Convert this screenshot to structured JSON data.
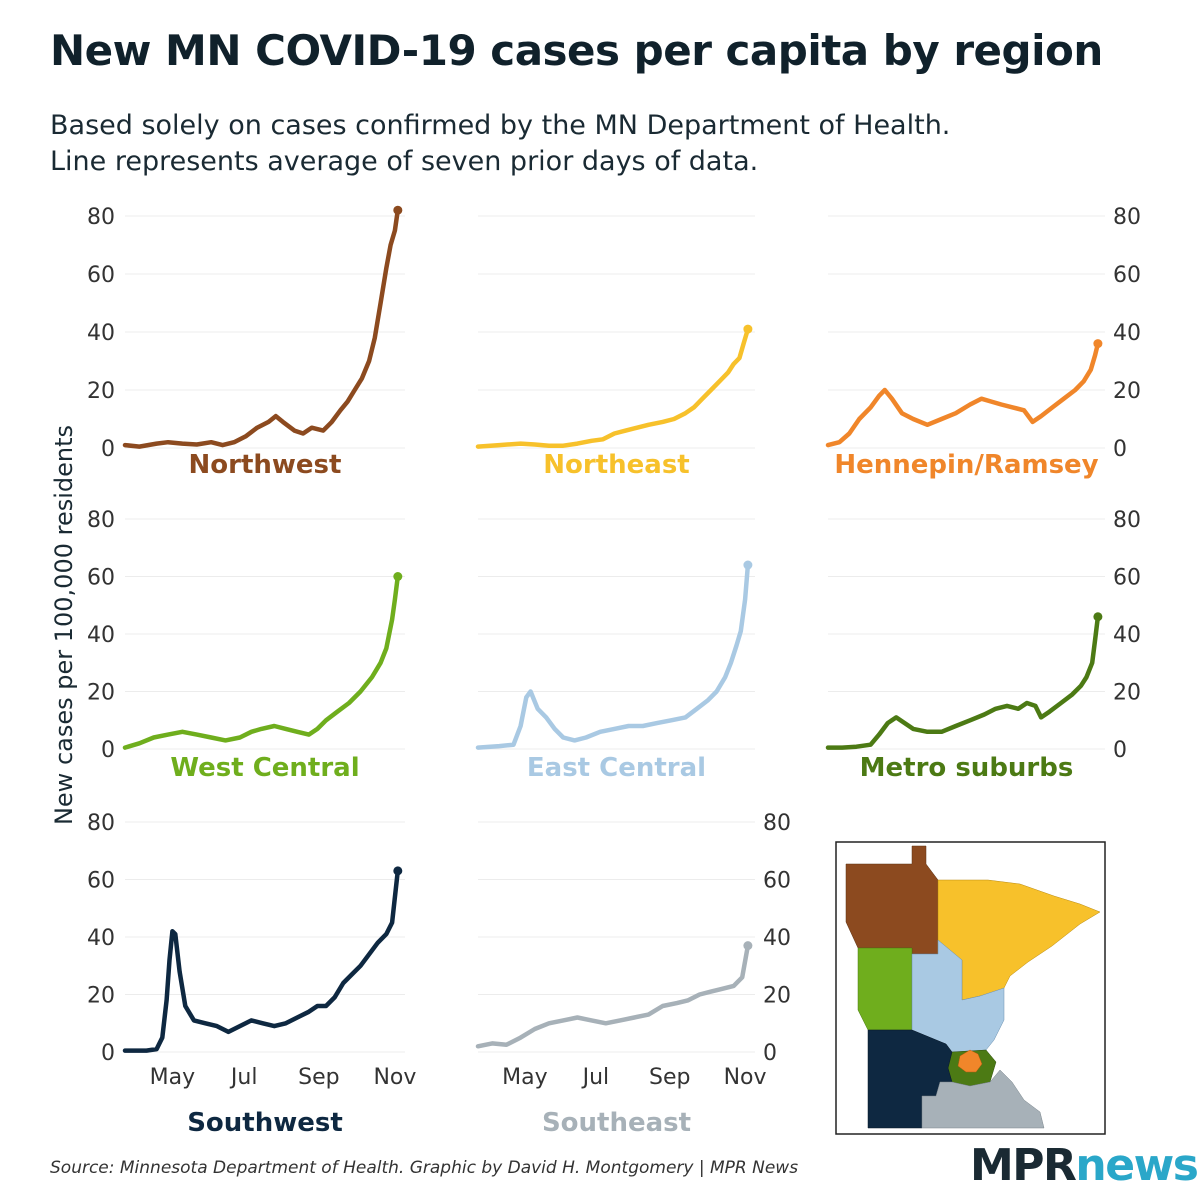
{
  "title": "New MN COVID-19 cases per capita by region",
  "subtitle_lines": [
    "Based solely on cases confirmed by the MN Department of Health.",
    "Line represents average of seven prior days of data."
  ],
  "source": "Source: Minnesota Department of Health. Graphic by David H. Montgomery | MPR News",
  "logo": {
    "part1": "MPR",
    "part2": "news"
  },
  "chart_data": {
    "type": "line",
    "title": "New MN COVID-19 cases per capita by region",
    "ylabel": "New cases per 100,000 residents",
    "xlabel": "",
    "ylim": [
      0,
      80
    ],
    "yticks": [
      0,
      20,
      40,
      60,
      80
    ],
    "xlim": [
      0,
      195
    ],
    "xticks": [
      {
        "label": "May",
        "day": 33
      },
      {
        "label": "Jul",
        "day": 83
      },
      {
        "label": "Sep",
        "day": 135
      },
      {
        "label": "Nov",
        "day": 188
      }
    ],
    "x_note": "x values are days since approx. March 28, 2020",
    "grid": true,
    "series": [
      {
        "name": "Northwest",
        "color": "#8c4a1f",
        "points": [
          [
            0,
            1
          ],
          [
            10,
            0.5
          ],
          [
            22,
            1.5
          ],
          [
            30,
            2
          ],
          [
            40,
            1.5
          ],
          [
            50,
            1.2
          ],
          [
            60,
            2
          ],
          [
            68,
            1
          ],
          [
            76,
            2
          ],
          [
            84,
            4
          ],
          [
            92,
            7
          ],
          [
            100,
            9
          ],
          [
            105,
            11
          ],
          [
            110,
            9
          ],
          [
            118,
            6
          ],
          [
            124,
            5
          ],
          [
            130,
            7
          ],
          [
            138,
            6
          ],
          [
            144,
            9
          ],
          [
            150,
            13
          ],
          [
            155,
            16
          ],
          [
            160,
            20
          ],
          [
            165,
            24
          ],
          [
            170,
            30
          ],
          [
            174,
            38
          ],
          [
            178,
            50
          ],
          [
            182,
            62
          ],
          [
            185,
            70
          ],
          [
            188,
            75
          ],
          [
            190,
            82
          ]
        ]
      },
      {
        "name": "Northeast",
        "color": "#f7c12b",
        "points": [
          [
            0,
            0.5
          ],
          [
            15,
            1
          ],
          [
            30,
            1.5
          ],
          [
            40,
            1.2
          ],
          [
            50,
            0.8
          ],
          [
            60,
            0.8
          ],
          [
            70,
            1.5
          ],
          [
            80,
            2.5
          ],
          [
            88,
            3
          ],
          [
            96,
            5
          ],
          [
            104,
            6
          ],
          [
            112,
            7
          ],
          [
            120,
            8
          ],
          [
            130,
            9
          ],
          [
            138,
            10
          ],
          [
            146,
            12
          ],
          [
            152,
            14
          ],
          [
            158,
            17
          ],
          [
            164,
            20
          ],
          [
            170,
            23
          ],
          [
            176,
            26
          ],
          [
            180,
            29
          ],
          [
            184,
            31
          ],
          [
            187,
            36
          ],
          [
            190,
            41
          ]
        ]
      },
      {
        "name": "Hennepin/Ramsey",
        "color": "#f0862a",
        "points": [
          [
            0,
            1
          ],
          [
            8,
            2
          ],
          [
            15,
            5
          ],
          [
            22,
            10
          ],
          [
            30,
            14
          ],
          [
            36,
            18
          ],
          [
            40,
            20
          ],
          [
            45,
            17
          ],
          [
            52,
            12
          ],
          [
            60,
            10
          ],
          [
            70,
            8
          ],
          [
            80,
            10
          ],
          [
            90,
            12
          ],
          [
            100,
            15
          ],
          [
            108,
            17
          ],
          [
            115,
            16
          ],
          [
            122,
            15
          ],
          [
            130,
            14
          ],
          [
            138,
            13
          ],
          [
            144,
            9
          ],
          [
            150,
            11
          ],
          [
            158,
            14
          ],
          [
            166,
            17
          ],
          [
            174,
            20
          ],
          [
            180,
            23
          ],
          [
            185,
            27
          ],
          [
            188,
            32
          ],
          [
            190,
            36
          ]
        ]
      },
      {
        "name": "West Central",
        "color": "#6fae1d",
        "points": [
          [
            0,
            0.5
          ],
          [
            10,
            2
          ],
          [
            20,
            4
          ],
          [
            30,
            5
          ],
          [
            40,
            6
          ],
          [
            50,
            5
          ],
          [
            60,
            4
          ],
          [
            70,
            3
          ],
          [
            80,
            4
          ],
          [
            88,
            6
          ],
          [
            95,
            7
          ],
          [
            104,
            8
          ],
          [
            112,
            7
          ],
          [
            120,
            6
          ],
          [
            128,
            5
          ],
          [
            134,
            7
          ],
          [
            140,
            10
          ],
          [
            148,
            13
          ],
          [
            156,
            16
          ],
          [
            164,
            20
          ],
          [
            172,
            25
          ],
          [
            178,
            30
          ],
          [
            182,
            35
          ],
          [
            186,
            45
          ],
          [
            188,
            52
          ],
          [
            190,
            60
          ]
        ]
      },
      {
        "name": "East Central",
        "color": "#a9c9e3",
        "points": [
          [
            0,
            0.5
          ],
          [
            15,
            1
          ],
          [
            25,
            1.5
          ],
          [
            30,
            8
          ],
          [
            34,
            18
          ],
          [
            37,
            20
          ],
          [
            42,
            14
          ],
          [
            48,
            11
          ],
          [
            54,
            7
          ],
          [
            60,
            4
          ],
          [
            68,
            3
          ],
          [
            76,
            4
          ],
          [
            86,
            6
          ],
          [
            96,
            7
          ],
          [
            106,
            8
          ],
          [
            116,
            8
          ],
          [
            126,
            9
          ],
          [
            136,
            10
          ],
          [
            146,
            11
          ],
          [
            154,
            14
          ],
          [
            162,
            17
          ],
          [
            168,
            20
          ],
          [
            174,
            25
          ],
          [
            178,
            30
          ],
          [
            182,
            36
          ],
          [
            185,
            41
          ],
          [
            188,
            52
          ],
          [
            190,
            64
          ]
        ]
      },
      {
        "name": "Metro suburbs",
        "color": "#4c7a14",
        "points": [
          [
            0,
            0.5
          ],
          [
            10,
            0.5
          ],
          [
            20,
            0.8
          ],
          [
            30,
            1.5
          ],
          [
            36,
            5
          ],
          [
            42,
            9
          ],
          [
            48,
            11
          ],
          [
            54,
            9
          ],
          [
            60,
            7
          ],
          [
            70,
            6
          ],
          [
            80,
            6
          ],
          [
            90,
            8
          ],
          [
            100,
            10
          ],
          [
            110,
            12
          ],
          [
            118,
            14
          ],
          [
            126,
            15
          ],
          [
            134,
            14
          ],
          [
            140,
            16
          ],
          [
            146,
            15
          ],
          [
            150,
            11
          ],
          [
            156,
            13
          ],
          [
            164,
            16
          ],
          [
            172,
            19
          ],
          [
            178,
            22
          ],
          [
            182,
            25
          ],
          [
            186,
            30
          ],
          [
            188,
            38
          ],
          [
            190,
            46
          ]
        ]
      },
      {
        "name": "Southwest",
        "color": "#0e2841",
        "points": [
          [
            0,
            0.5
          ],
          [
            15,
            0.5
          ],
          [
            22,
            1
          ],
          [
            26,
            5
          ],
          [
            29,
            18
          ],
          [
            31,
            32
          ],
          [
            33,
            42
          ],
          [
            35,
            41
          ],
          [
            38,
            28
          ],
          [
            42,
            16
          ],
          [
            48,
            11
          ],
          [
            56,
            10
          ],
          [
            64,
            9
          ],
          [
            72,
            7
          ],
          [
            80,
            9
          ],
          [
            88,
            11
          ],
          [
            96,
            10
          ],
          [
            104,
            9
          ],
          [
            112,
            10
          ],
          [
            120,
            12
          ],
          [
            128,
            14
          ],
          [
            134,
            16
          ],
          [
            140,
            16
          ],
          [
            146,
            19
          ],
          [
            152,
            24
          ],
          [
            158,
            27
          ],
          [
            164,
            30
          ],
          [
            170,
            34
          ],
          [
            176,
            38
          ],
          [
            182,
            41
          ],
          [
            186,
            45
          ],
          [
            190,
            63
          ]
        ]
      },
      {
        "name": "Southeast",
        "color": "#a7b1b8",
        "points": [
          [
            0,
            2
          ],
          [
            10,
            3
          ],
          [
            20,
            2.5
          ],
          [
            30,
            5
          ],
          [
            40,
            8
          ],
          [
            50,
            10
          ],
          [
            60,
            11
          ],
          [
            70,
            12
          ],
          [
            80,
            11
          ],
          [
            90,
            10
          ],
          [
            100,
            11
          ],
          [
            110,
            12
          ],
          [
            120,
            13
          ],
          [
            130,
            16
          ],
          [
            140,
            17
          ],
          [
            148,
            18
          ],
          [
            156,
            20
          ],
          [
            164,
            21
          ],
          [
            172,
            22
          ],
          [
            180,
            23
          ],
          [
            186,
            26
          ],
          [
            190,
            37
          ]
        ]
      }
    ],
    "panel_order": [
      "Northwest",
      "Northeast",
      "Hennepin/Ramsey",
      "West Central",
      "East Central",
      "Metro suburbs",
      "Southwest",
      "Southeast"
    ],
    "legend": "inset map of Minnesota regions colored by series"
  }
}
